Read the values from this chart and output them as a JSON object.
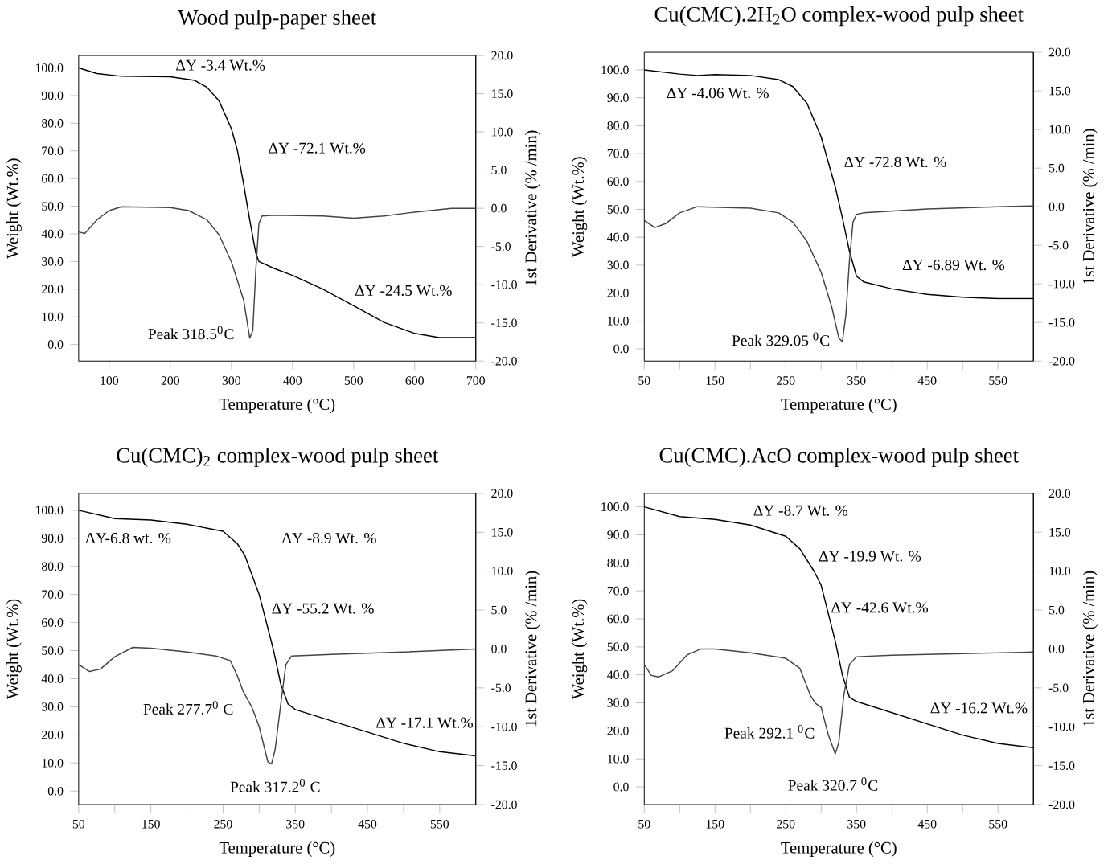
{
  "chart_data": [
    {
      "type": "line",
      "title": "Wood pulp-paper sheet",
      "xlabel": "Temperature (°C)",
      "ylabel": "Weight (Wt.%)",
      "y2label": "1st Derivative (% /min)",
      "xlim": [
        50,
        700
      ],
      "ylim": [
        -6,
        104.5
      ],
      "y2lim": [
        -20,
        20
      ],
      "xticks": [
        100,
        200,
        300,
        400,
        500,
        600,
        700
      ],
      "yticks": [
        {
          "value": 0,
          "label": "0.0"
        },
        {
          "value": 10,
          "label": "10.0"
        },
        {
          "value": 20,
          "label": "20.0"
        },
        {
          "value": 30,
          "label": "30.0"
        },
        {
          "value": 40,
          "label": "40.0"
        },
        {
          "value": 50,
          "label": "50.0"
        },
        {
          "value": 60,
          "label": "60.0"
        },
        {
          "value": 70,
          "label": "70.0"
        },
        {
          "value": 80,
          "label": "80.0"
        },
        {
          "value": 90,
          "label": "90.0"
        },
        {
          "value": 100,
          "label": "100.0"
        }
      ],
      "y2ticks": [
        {
          "value": -20,
          "label": "-20.0"
        },
        {
          "value": -15,
          "label": "-15.0"
        },
        {
          "value": -10,
          "label": "-10.0"
        },
        {
          "value": -5,
          "label": "-5.0"
        },
        {
          "value": 0,
          "label": "0.0"
        },
        {
          "value": 5,
          "label": "5.0"
        },
        {
          "value": 10,
          "label": "10.0"
        },
        {
          "value": 15,
          "label": "15.0"
        },
        {
          "value": 20,
          "label": "20.0"
        }
      ],
      "series": [
        {
          "color": "#000000",
          "x": [
            50,
            80,
            120,
            200,
            240,
            260,
            280,
            300,
            310,
            320,
            330,
            340,
            345,
            370,
            400,
            450,
            500,
            550,
            600,
            640,
            700
          ],
          "values": [
            100,
            98,
            97,
            96.8,
            95.5,
            93,
            88,
            78,
            70,
            58,
            45,
            33,
            30,
            27.5,
            25,
            20,
            14,
            8,
            4,
            2.5,
            2.5
          ]
        },
        {
          "color": "#444444",
          "axis": "y2",
          "x": [
            50,
            60,
            80,
            100,
            120,
            200,
            230,
            260,
            280,
            300,
            320,
            330,
            335,
            340,
            345,
            350,
            370,
            450,
            500,
            550,
            600,
            660,
            700
          ],
          "values": [
            -3.1,
            -3.3,
            -1.5,
            -0.3,
            0.2,
            0.1,
            -0.3,
            -1.5,
            -3.5,
            -7,
            -12,
            -17,
            -16,
            -8,
            -2,
            -1,
            -0.9,
            -1,
            -1.3,
            -1,
            -0.5,
            0,
            0
          ]
        }
      ],
      "annotations": [
        "ΔY -3.4 Wt.%",
        "ΔY -72.1 Wt.%",
        "ΔY -24.5 Wt.%",
        "Peak 318.5$^{0}$C"
      ]
    },
    {
      "type": "line",
      "title": "Cu(CMC).2H$_{2}$O complex-wood pulp sheet",
      "xlabel": "Temperature (°C)",
      "ylabel": "Weight (Wt.%)",
      "y2label": "1st Derivative (% /min)",
      "xlim": [
        50,
        600
      ],
      "ylim": [
        -4.4,
        106.3
      ],
      "y2lim": [
        -20,
        20
      ],
      "xticks": [
        50,
        {
          "value": 100,
          "label": null
        },
        150,
        {
          "value": 200,
          "label": null
        },
        250,
        {
          "value": 300,
          "label": null
        },
        350,
        {
          "value": 400,
          "label": null
        },
        450,
        {
          "value": 500,
          "label": null
        },
        550
      ],
      "yticks": [
        {
          "value": 0,
          "label": "0.0"
        },
        {
          "value": 10,
          "label": "10.0"
        },
        {
          "value": 20,
          "label": "20.0"
        },
        {
          "value": 30,
          "label": "30.0"
        },
        {
          "value": 40,
          "label": "40.0"
        },
        {
          "value": 50,
          "label": "50.0"
        },
        {
          "value": 60,
          "label": "60.0"
        },
        {
          "value": 70,
          "label": "70.0"
        },
        {
          "value": 80,
          "label": "80.0"
        },
        {
          "value": 90,
          "label": "90.0"
        },
        {
          "value": 100,
          "label": "100.0"
        }
      ],
      "y2ticks": [
        {
          "value": -20,
          "label": "-20.0"
        },
        {
          "value": -15,
          "label": "-15.0"
        },
        {
          "value": -10,
          "label": "-10.0"
        },
        {
          "value": -5,
          "label": "-5.0"
        },
        {
          "value": 0,
          "label": "0.0"
        },
        {
          "value": 5,
          "label": "5.0"
        },
        {
          "value": 10,
          "label": "10.0"
        },
        {
          "value": 15,
          "label": "15.0"
        },
        {
          "value": 20,
          "label": "20.0"
        }
      ],
      "series": [
        {
          "color": "#000000",
          "x": [
            50,
            100,
            125,
            150,
            200,
            240,
            260,
            280,
            300,
            320,
            330,
            340,
            350,
            360,
            400,
            450,
            500,
            550,
            600
          ],
          "values": [
            100,
            98.5,
            98,
            98.3,
            98,
            96.5,
            94,
            88,
            76,
            58,
            47,
            35,
            26,
            24,
            21.5,
            19.5,
            18.5,
            18,
            18
          ]
        },
        {
          "color": "#444444",
          "axis": "y2",
          "x": [
            50,
            65,
            80,
            100,
            125,
            200,
            240,
            260,
            280,
            300,
            315,
            325,
            330,
            335,
            340,
            345,
            350,
            360,
            450,
            550,
            600
          ],
          "values": [
            -1.8,
            -2.7,
            -2.2,
            -0.8,
            0,
            -0.2,
            -0.8,
            -2,
            -4.5,
            -8.5,
            -13,
            -17,
            -17.5,
            -14,
            -7,
            -2,
            -1,
            -0.8,
            -0.3,
            0,
            0.1
          ]
        }
      ],
      "annotations": [
        "ΔY -4.06 Wt. %",
        "ΔY -72.8 Wt. %",
        "ΔY -6.89 Wt. %",
        "Peak 329.05 $^{0}$C"
      ]
    },
    {
      "type": "line",
      "title": "Cu(CMC)$_{2}$ complex-wood pulp sheet",
      "xlabel": "Temperature (°C)",
      "ylabel": "Weight (Wt.%)",
      "y2label": "1st Derivative (% /min)",
      "xlim": [
        50,
        600
      ],
      "ylim": [
        -4.8,
        106
      ],
      "y2lim": [
        -20,
        20
      ],
      "xticks": [
        50,
        {
          "value": 100,
          "label": null
        },
        150,
        {
          "value": 200,
          "label": null
        },
        250,
        {
          "value": 300,
          "label": null
        },
        350,
        {
          "value": 400,
          "label": null
        },
        450,
        {
          "value": 500,
          "label": null
        },
        550
      ],
      "yticks": [
        {
          "value": 0,
          "label": "0.0"
        },
        {
          "value": 10,
          "label": "10.0"
        },
        {
          "value": 20,
          "label": "20.0"
        },
        {
          "value": 30,
          "label": "30.0"
        },
        {
          "value": 40,
          "label": "40.0"
        },
        {
          "value": 50,
          "label": "50.0"
        },
        {
          "value": 60,
          "label": "60.0"
        },
        {
          "value": 70,
          "label": "70.0"
        },
        {
          "value": 80,
          "label": "80.0"
        },
        {
          "value": 90,
          "label": "90.0"
        },
        {
          "value": 100,
          "label": "100.0"
        }
      ],
      "y2ticks": [
        {
          "value": -20,
          "label": "-20.0"
        },
        {
          "value": -15,
          "label": "-15.0"
        },
        {
          "value": -10,
          "label": "-10.0"
        },
        {
          "value": -5,
          "label": "-5.0"
        },
        {
          "value": 0,
          "label": "0.0"
        },
        {
          "value": 5,
          "label": "5.0"
        },
        {
          "value": 10,
          "label": "10.0"
        },
        {
          "value": 15,
          "label": "15.0"
        },
        {
          "value": 20,
          "label": "20.0"
        }
      ],
      "series": [
        {
          "color": "#000000",
          "x": [
            50,
            100,
            150,
            200,
            250,
            270,
            280,
            300,
            320,
            330,
            340,
            350,
            400,
            450,
            500,
            550,
            600
          ],
          "values": [
            100,
            97,
            96.5,
            95,
            92.5,
            88,
            84,
            70,
            50,
            38,
            31,
            29,
            25,
            21,
            17,
            14,
            12.5
          ]
        },
        {
          "color": "#444444",
          "axis": "y2",
          "x": [
            50,
            65,
            80,
            100,
            125,
            150,
            200,
            240,
            260,
            270,
            278,
            290,
            300,
            312,
            317,
            322,
            330,
            337,
            345,
            400,
            500,
            600
          ],
          "values": [
            -2,
            -2.9,
            -2.6,
            -1,
            0.2,
            0.1,
            -0.4,
            -0.9,
            -1.5,
            -3.5,
            -5.5,
            -7.5,
            -10,
            -14.5,
            -14.8,
            -13,
            -7,
            -2,
            -0.9,
            -0.7,
            -0.4,
            0
          ]
        }
      ],
      "annotations": [
        "ΔY-6.8 wt. %",
        "ΔY  -8.9 Wt. %",
        "ΔY -55.2 Wt. %",
        "Peak 277.7$^{0}$ C",
        "ΔY -17.1 Wt.%",
        "Peak 317.2$^{0}$ C"
      ]
    },
    {
      "type": "line",
      "title": "Cu(CMC).AcO complex-wood pulp sheet",
      "xlabel": "Temperature (°C)",
      "ylabel": "Weight (Wt.%)",
      "y2label": "1st Derivative (% /min)",
      "xlim": [
        50,
        600
      ],
      "ylim": [
        -6.3,
        104.8
      ],
      "y2lim": [
        -20,
        20
      ],
      "xticks": [
        50,
        {
          "value": 100,
          "label": null
        },
        150,
        {
          "value": 200,
          "label": null
        },
        250,
        {
          "value": 300,
          "label": null
        },
        350,
        {
          "value": 400,
          "label": null
        },
        450,
        {
          "value": 500,
          "label": null
        },
        550
      ],
      "yticks": [
        {
          "value": 0,
          "label": "0.0"
        },
        {
          "value": 10,
          "label": "10.0"
        },
        {
          "value": 20,
          "label": "20.0"
        },
        {
          "value": 30,
          "label": "30.0"
        },
        {
          "value": 40,
          "label": "40.0"
        },
        {
          "value": 50,
          "label": "50.0"
        },
        {
          "value": 60,
          "label": "60.0"
        },
        {
          "value": 70,
          "label": "70.0"
        },
        {
          "value": 80,
          "label": "80.0"
        },
        {
          "value": 90,
          "label": "90.0"
        },
        {
          "value": 100,
          "label": "100.0"
        }
      ],
      "y2ticks": [
        {
          "value": -20,
          "label": "-20.0"
        },
        {
          "value": -15,
          "label": "-15.0"
        },
        {
          "value": -10,
          "label": "-10.0"
        },
        {
          "value": -5,
          "label": "-5.0"
        },
        {
          "value": 0,
          "label": "0.0"
        },
        {
          "value": 5,
          "label": "5.0"
        },
        {
          "value": 10,
          "label": "10.0"
        },
        {
          "value": 15,
          "label": "15.0"
        },
        {
          "value": 20,
          "label": "20.0"
        }
      ],
      "series": [
        {
          "color": "#000000",
          "x": [
            50,
            100,
            150,
            200,
            250,
            270,
            290,
            300,
            320,
            330,
            340,
            350,
            400,
            450,
            500,
            550,
            600
          ],
          "values": [
            100,
            96.5,
            95.5,
            93.5,
            89.5,
            85,
            77,
            72,
            52,
            40,
            32,
            30.5,
            26.5,
            22.5,
            18.5,
            15.5,
            14
          ]
        },
        {
          "color": "#444444",
          "axis": "y2",
          "x": [
            50,
            60,
            70,
            90,
            110,
            130,
            150,
            200,
            250,
            270,
            285,
            292,
            300,
            310,
            320,
            325,
            332,
            340,
            350,
            400,
            500,
            600
          ],
          "values": [
            -2,
            -3.4,
            -3.6,
            -2.8,
            -0.8,
            0,
            0,
            -0.5,
            -1.2,
            -2.5,
            -6,
            -7,
            -7.5,
            -11,
            -13.5,
            -12,
            -6,
            -2,
            -1,
            -0.8,
            -0.6,
            -0.4
          ]
        }
      ],
      "annotations": [
        "ΔY -8.7 Wt. %",
        "ΔY -19.9 Wt. %",
        "ΔY -42.6 Wt.%",
        "Peak 292.1 $^{0}$C",
        "ΔY -16.2 Wt.%",
        "Peak 320.7 $^{0}$C"
      ]
    }
  ]
}
